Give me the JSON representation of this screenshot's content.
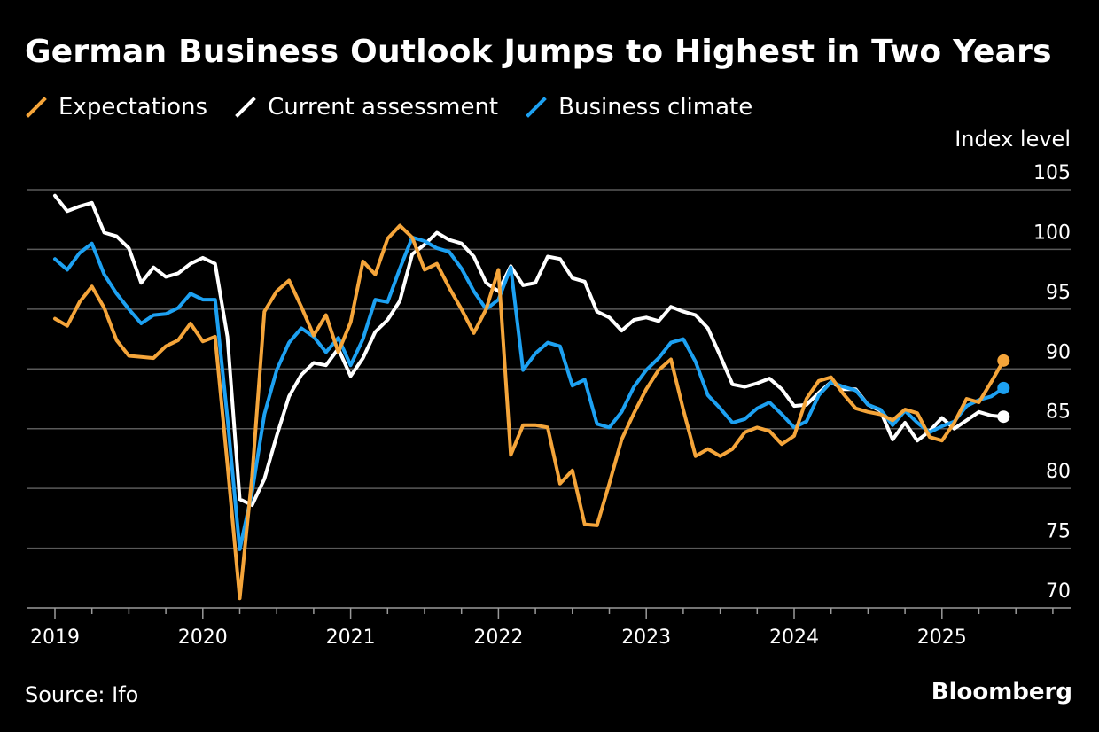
{
  "title": "German Business Outlook Jumps to Highest in Two Years",
  "unit_label": "Index level",
  "source": "Source: Ifo",
  "brand": "Bloomberg",
  "chart_data": {
    "type": "line",
    "title": "German Business Outlook Jumps to Highest in Two Years",
    "ylabel": "Index level",
    "ylim": [
      70,
      105
    ],
    "y_ticks": [
      105,
      100,
      95,
      90,
      85,
      80,
      75,
      70
    ],
    "x_start": "2019-01",
    "x_tick_labels": [
      "2019",
      "2020",
      "2021",
      "2022",
      "2023",
      "2024",
      "2025"
    ],
    "grid": true,
    "legend_position": "top-left",
    "series": [
      {
        "name": "Expectations",
        "color": "#f5a53a",
        "values": [
          94.2,
          93.6,
          95.6,
          96.9,
          95.1,
          92.4,
          91.1,
          91.0,
          90.9,
          91.9,
          92.4,
          93.8,
          92.3,
          92.7,
          82.0,
          70.8,
          81.0,
          94.8,
          96.5,
          97.4,
          95.2,
          92.8,
          94.5,
          91.4,
          93.9,
          99.0,
          97.9,
          100.9,
          102.0,
          101.0,
          98.3,
          98.8,
          96.8,
          95.0,
          93.0,
          95.0,
          98.3,
          82.8,
          85.3,
          85.3,
          85.1,
          80.4,
          81.5,
          77.0,
          76.9,
          80.4,
          84.1,
          86.3,
          88.3,
          89.9,
          90.8,
          86.6,
          82.7,
          83.3,
          82.7,
          83.3,
          84.7,
          85.1,
          84.8,
          83.7,
          84.4,
          87.5,
          89.0,
          89.3,
          87.9,
          86.7,
          86.4,
          86.2,
          85.7,
          86.6,
          86.3,
          84.3,
          84.0,
          85.5,
          87.5,
          87.2,
          88.9,
          90.7
        ],
        "end_marker": true
      },
      {
        "name": "Current assessment",
        "color": "#ffffff",
        "values": [
          104.5,
          103.2,
          103.6,
          103.9,
          101.4,
          101.1,
          100.1,
          97.2,
          98.5,
          97.7,
          98.0,
          98.8,
          99.3,
          98.8,
          92.7,
          79.1,
          78.6,
          80.8,
          84.4,
          87.7,
          89.5,
          90.5,
          90.3,
          91.7,
          89.4,
          90.9,
          93.1,
          94.1,
          95.7,
          99.6,
          100.4,
          101.4,
          100.8,
          100.5,
          99.4,
          97.2,
          96.5,
          98.6,
          97.0,
          97.2,
          99.4,
          99.2,
          97.6,
          97.3,
          94.8,
          94.3,
          93.2,
          94.1,
          94.3,
          94.0,
          95.2,
          94.8,
          94.5,
          93.4,
          91.1,
          88.7,
          88.5,
          88.8,
          89.2,
          88.3,
          86.9,
          87.0,
          88.0,
          88.9,
          88.3,
          88.3,
          87.0,
          86.5,
          84.1,
          85.5,
          84.0,
          84.8,
          85.9,
          85.0,
          85.7,
          86.4,
          86.1,
          86.0
        ],
        "end_marker": true
      },
      {
        "name": "Business climate",
        "color": "#1da1f2",
        "values": [
          99.2,
          98.3,
          99.7,
          100.5,
          97.9,
          96.3,
          95.0,
          93.8,
          94.5,
          94.6,
          95.1,
          96.3,
          95.8,
          95.8,
          85.9,
          74.9,
          79.7,
          86.2,
          89.9,
          92.2,
          93.4,
          92.7,
          91.4,
          92.6,
          90.3,
          92.5,
          95.8,
          95.6,
          98.4,
          101.0,
          100.7,
          100.1,
          99.8,
          98.4,
          96.5,
          95.0,
          95.8,
          98.5,
          89.9,
          91.3,
          92.2,
          91.9,
          88.6,
          89.1,
          85.4,
          85.1,
          86.4,
          88.5,
          89.9,
          90.9,
          92.2,
          92.5,
          90.6,
          87.8,
          86.7,
          85.5,
          85.8,
          86.7,
          87.2,
          86.2,
          85.1,
          85.6,
          87.8,
          88.9,
          88.5,
          88.2,
          87.0,
          86.6,
          85.3,
          86.5,
          85.5,
          84.7,
          85.2,
          85.6,
          86.9,
          87.4,
          87.7,
          88.4
        ],
        "end_marker": true
      }
    ]
  }
}
